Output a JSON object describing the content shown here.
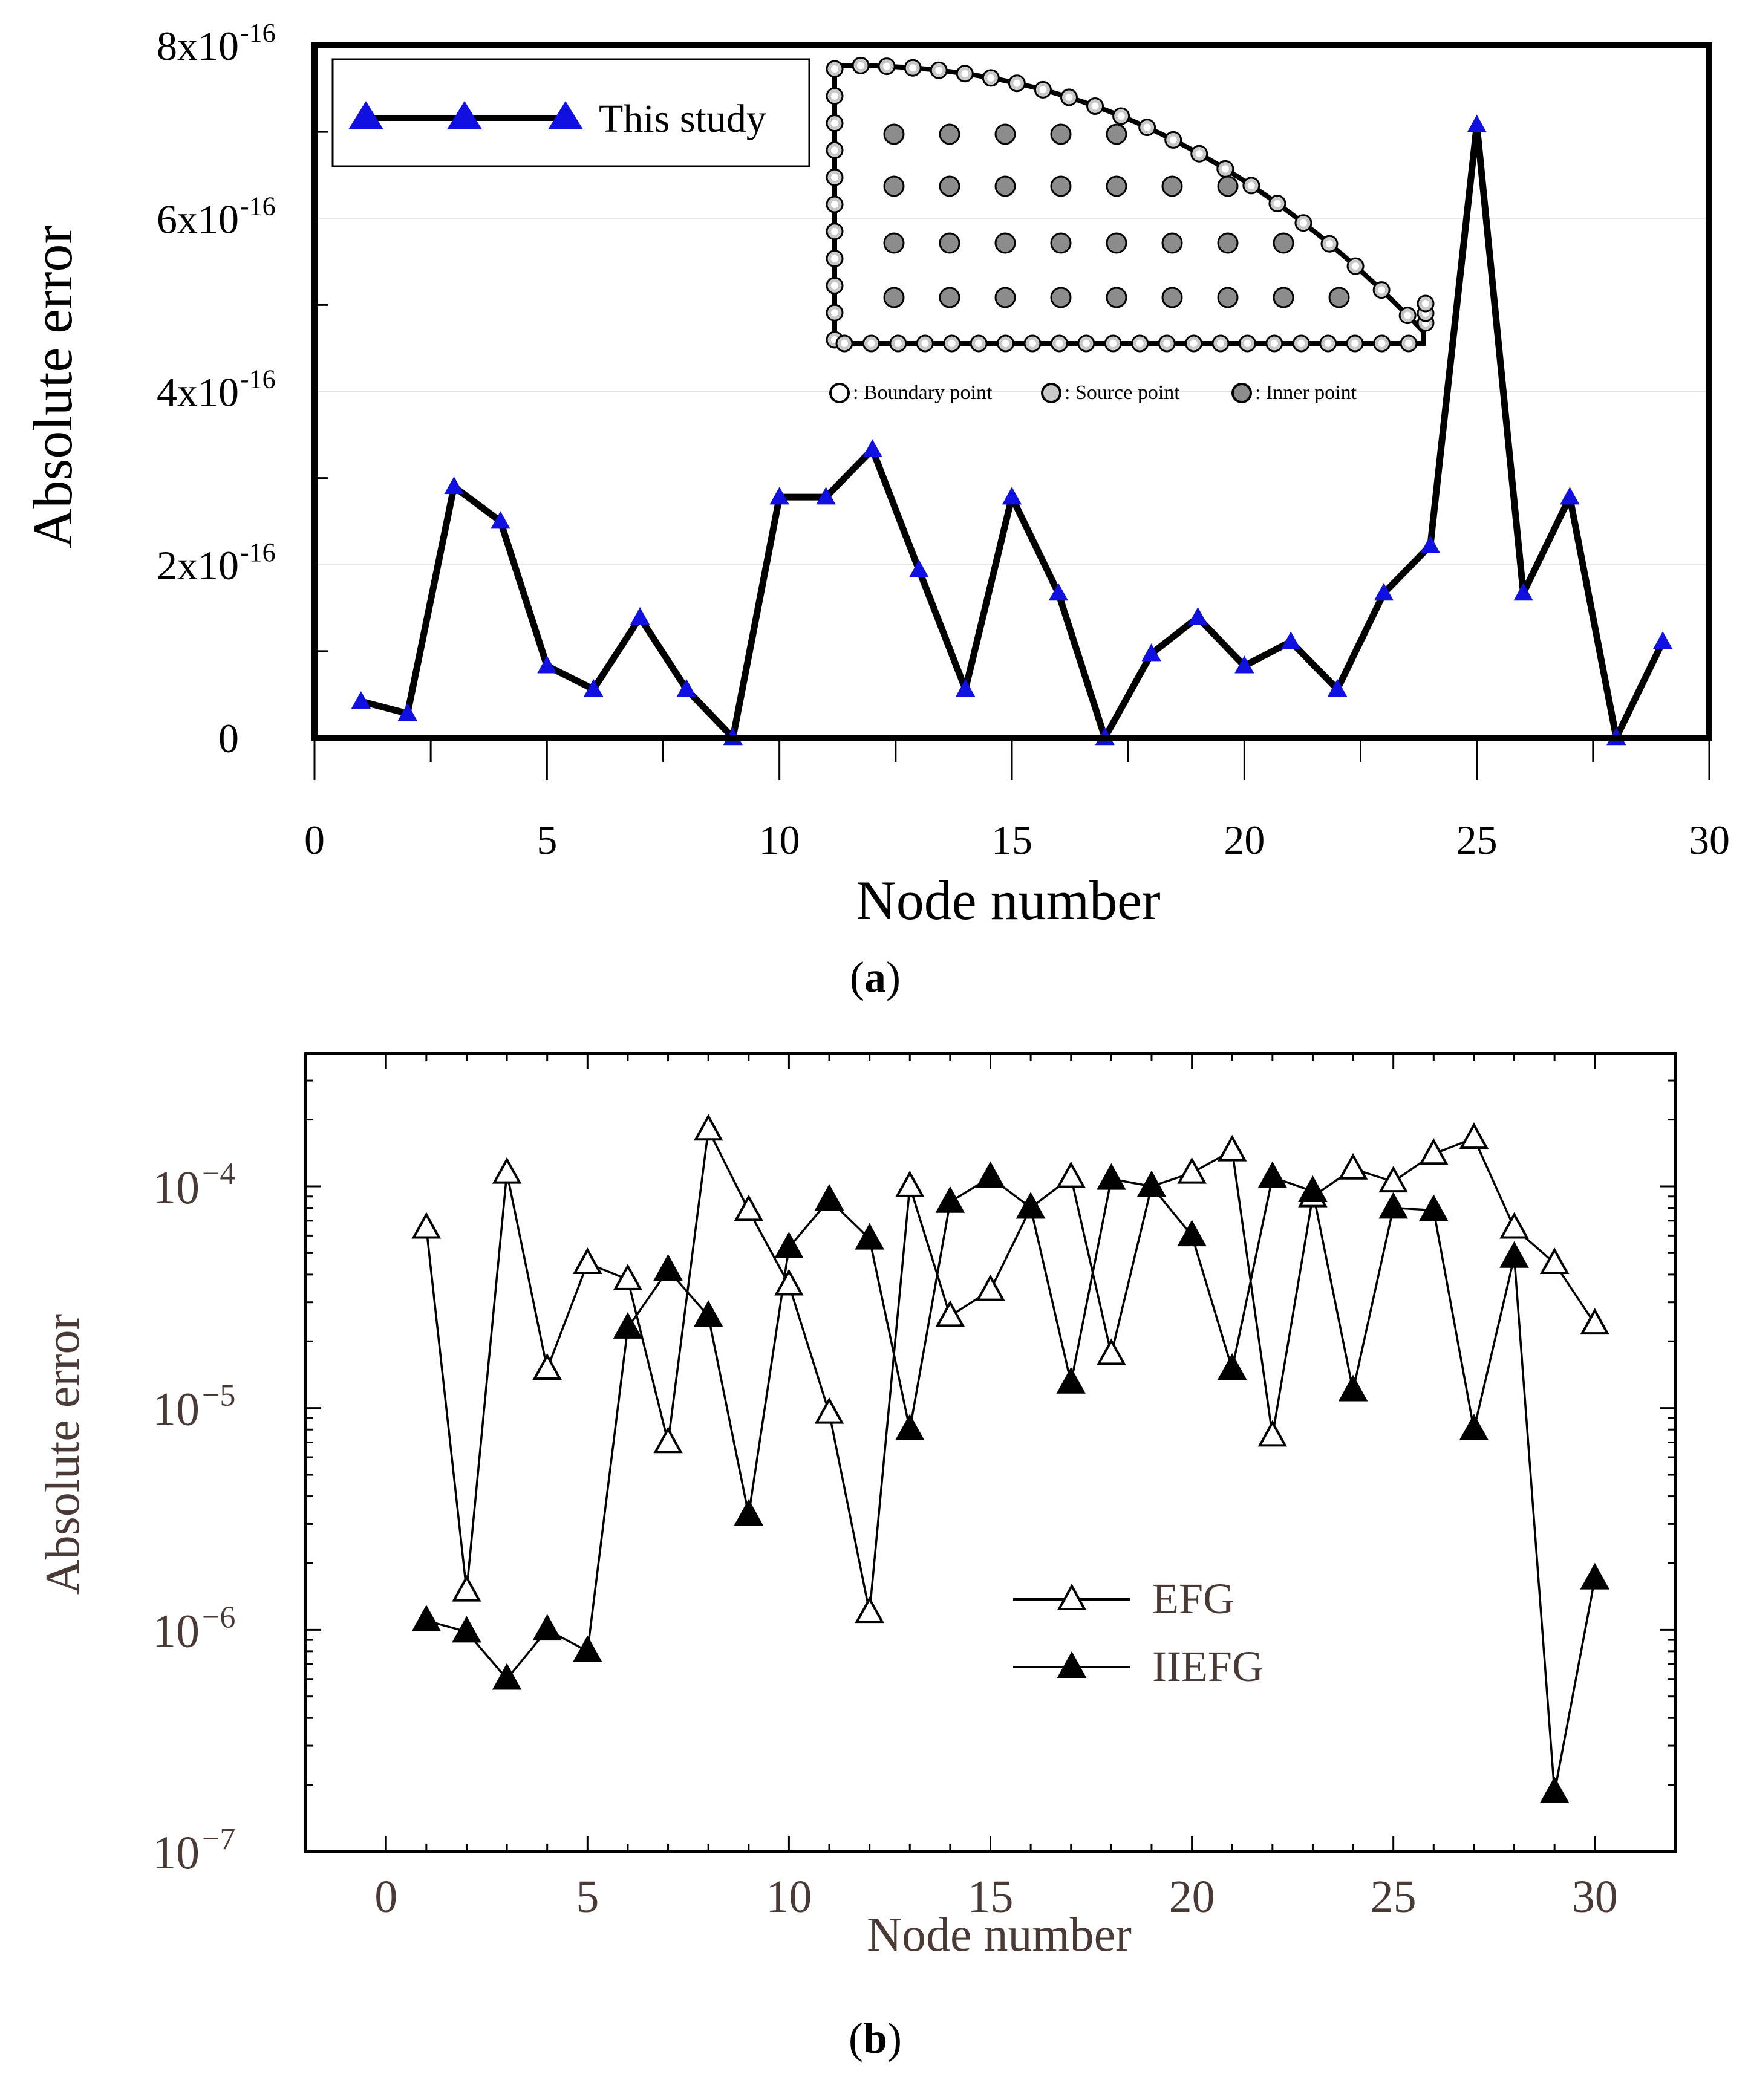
{
  "chart_data": [
    {
      "id": "a",
      "type": "line",
      "panel_label": "a",
      "title": "",
      "xlabel": "Node number",
      "ylabel": "Absolute error",
      "xlim": [
        0,
        30
      ],
      "ylim": [
        0,
        8e-16
      ],
      "x_ticks": [
        "0",
        "5",
        "10",
        "15",
        "20",
        "25",
        "30"
      ],
      "y_ticks": [
        {
          "value": 0,
          "label": "0",
          "exp": ""
        },
        {
          "value": 2e-16,
          "label": "2x10",
          "exp": "-16"
        },
        {
          "value": 4e-16,
          "label": "4x10",
          "exp": "-16"
        },
        {
          "value": 6e-16,
          "label": "6x10",
          "exp": "-16"
        },
        {
          "value": 8e-16,
          "label": "8x10",
          "exp": "-16"
        }
      ],
      "legend": {
        "position": "top-left",
        "entries": [
          "This study"
        ]
      },
      "series": [
        {
          "name": "This study",
          "color": "#000000",
          "marker_color": "#1010e0",
          "marker": "filled-triangle",
          "x": [
            1,
            2,
            3,
            4,
            5,
            6,
            7,
            8,
            9,
            10,
            11,
            12,
            13,
            14,
            15,
            16,
            17,
            18,
            19,
            20,
            21,
            22,
            23,
            24,
            25,
            26,
            27,
            28,
            29
          ],
          "values": [
            4.2e-17,
            2.8e-17,
            2.9e-16,
            2.5e-16,
            8.3e-17,
            5.6e-17,
            1.39e-16,
            5.6e-17,
            0,
            2.78e-16,
            2.78e-16,
            3.33e-16,
            1.94e-16,
            5.6e-17,
            2.78e-16,
            1.67e-16,
            0,
            9.7e-17,
            1.39e-16,
            8.3e-17,
            1.11e-16,
            5.6e-17,
            1.67e-16,
            2.22e-16,
            7.08e-16,
            1.67e-16,
            2.78e-16,
            0,
            1.11e-16
          ]
        }
      ],
      "inset": {
        "legend_items": [
          ": Boundary point",
          ": Source point",
          ": Inner point"
        ],
        "boundary_point_color": "#ffffff",
        "source_point_color": "#c8c8c8",
        "inner_point_color": "#8c8c8c",
        "inner_rows": [
          5,
          7,
          8,
          9
        ]
      }
    },
    {
      "id": "b",
      "type": "line",
      "panel_label": "b",
      "title": "",
      "xlabel": "Node number",
      "ylabel": "Absolute error",
      "xlim": [
        -2,
        32
      ],
      "y_scale": "log",
      "ylim_log10": [
        -7,
        -3.4
      ],
      "x_ticks": [
        "0",
        "5",
        "10",
        "15",
        "20",
        "25",
        "30"
      ],
      "y_ticks": [
        {
          "exp": -7,
          "label": "10",
          "sup": "−7"
        },
        {
          "exp": -6,
          "label": "10",
          "sup": "−6"
        },
        {
          "exp": -5,
          "label": "10",
          "sup": "−5"
        },
        {
          "exp": -4,
          "label": "10",
          "sup": "−4"
        }
      ],
      "legend": {
        "position": "lower-right",
        "entries": [
          "EFG",
          "IIEFG"
        ]
      },
      "series": [
        {
          "name": "EFG",
          "marker": "open-triangle",
          "x": [
            1,
            2,
            3,
            4,
            5,
            6,
            7,
            8,
            9,
            10,
            11,
            12,
            13,
            14,
            15,
            16,
            17,
            18,
            19,
            20,
            21,
            22,
            23,
            24,
            25,
            26,
            27,
            28,
            29,
            30
          ],
          "values": [
            6.5e-05,
            1.5e-06,
            0.000115,
            1.5e-05,
            4.5e-05,
            3.8e-05,
            7e-06,
            0.00018,
            7.8e-05,
            3.6e-05,
            9.5e-06,
            1.2e-06,
            0.0001,
            2.6e-05,
            3.4e-05,
            8e-05,
            0.00011,
            1.75e-05,
            0.0001,
            0.000115,
            0.000145,
            7.5e-06,
            9e-05,
            0.00012,
            0.000105,
            0.00014,
            0.000165,
            6.5e-05,
            4.5e-05,
            2.4e-05
          ]
        },
        {
          "name": "IIEFG",
          "marker": "filled-triangle",
          "x": [
            1,
            2,
            3,
            4,
            5,
            6,
            7,
            8,
            9,
            10,
            11,
            12,
            13,
            14,
            15,
            16,
            17,
            18,
            19,
            20,
            21,
            22,
            23,
            24,
            25,
            26,
            27,
            28,
            29,
            30
          ],
          "values": [
            1.1e-06,
            9.8e-07,
            6e-07,
            1e-06,
            8e-07,
            2.3e-05,
            4.2e-05,
            2.6e-05,
            3.3e-06,
            5.3e-05,
            8.7e-05,
            5.8e-05,
            8e-06,
            8.5e-05,
            0.00011,
            8e-05,
            1.3e-05,
            0.000108,
            0.0001,
            6e-05,
            1.5e-05,
            0.00011,
            9.5e-05,
            1.2e-05,
            8e-05,
            7.8e-05,
            8e-06,
            4.8e-05,
            1.85e-07,
            1.7e-06
          ]
        }
      ]
    }
  ]
}
